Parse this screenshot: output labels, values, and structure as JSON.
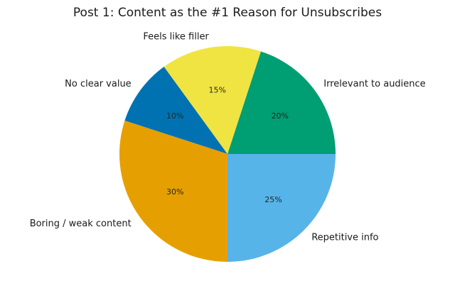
{
  "chart_data": {
    "type": "pie",
    "title": "Post 1: Content as the #1 Reason for Unsubscribes",
    "slices": [
      {
        "label": "No clear value",
        "value": 10,
        "pct_label": "10%",
        "color": "#0072b2"
      },
      {
        "label": "Boring / weak content",
        "value": 30,
        "pct_label": "30%",
        "color": "#e69f00"
      },
      {
        "label": "Repetitive info",
        "value": 25,
        "pct_label": "25%",
        "color": "#56b4e9"
      },
      {
        "label": "Irrelevant to audience",
        "value": 20,
        "pct_label": "20%",
        "color": "#009e73"
      },
      {
        "label": "Feels like filler",
        "value": 15,
        "pct_label": "15%",
        "color": "#f0e442"
      }
    ],
    "start_angle_deg": 126,
    "direction": "counterclockwise"
  }
}
